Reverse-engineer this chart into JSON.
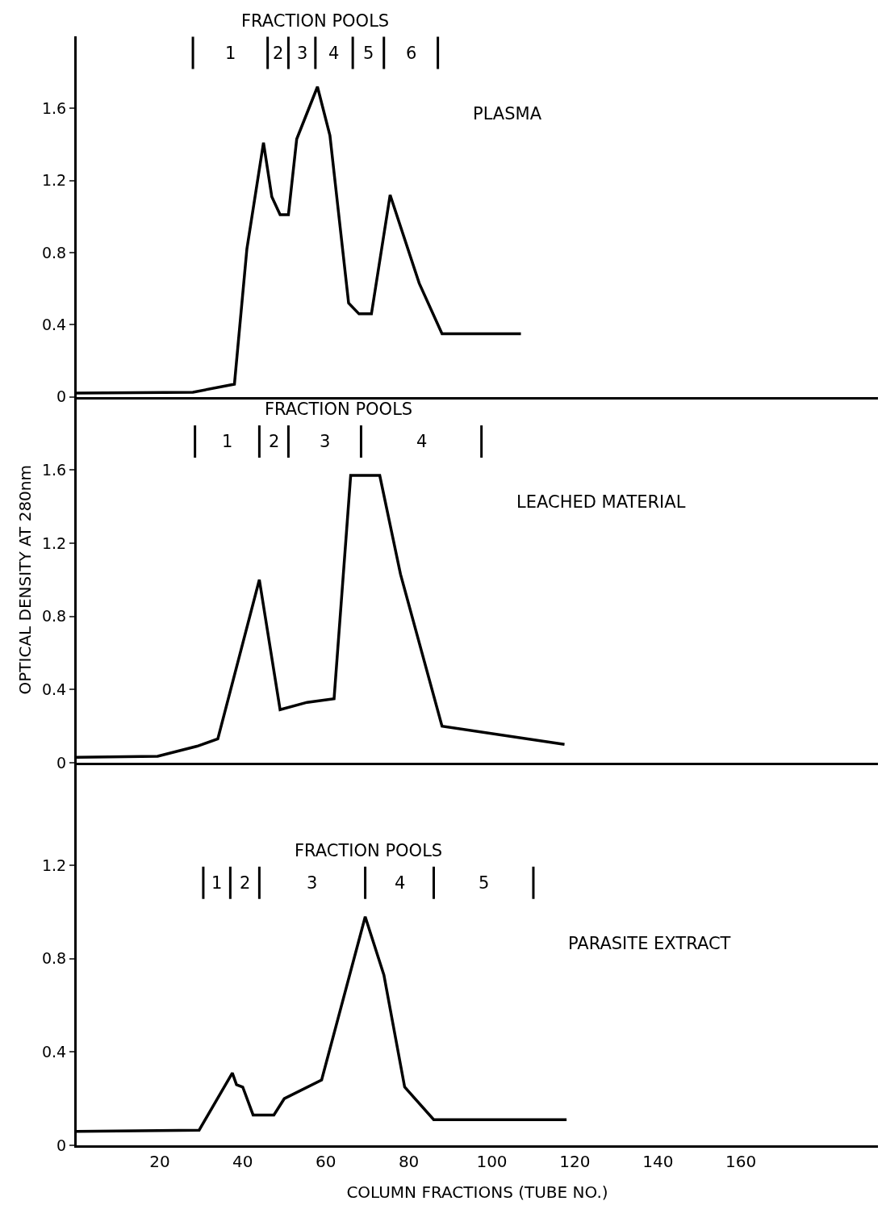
{
  "chart_data": [
    {
      "type": "line",
      "xlim": [
        0,
        193
      ],
      "ylim": [
        0,
        2.0
      ],
      "yticks": [
        0,
        0.4,
        0.8,
        1.2,
        1.6
      ],
      "xticks": [
        20,
        40,
        60,
        80,
        100,
        120,
        140,
        160
      ],
      "tick_labels": "y",
      "grid": false,
      "marker": "none",
      "line_style": "solid",
      "series": [
        {
          "color": "#000000",
          "x": [
            0,
            28,
            38,
            41,
            45,
            47,
            49,
            51,
            53,
            58,
            61,
            65.5,
            68,
            71,
            75.5,
            82.5,
            88,
            107
          ],
          "values": [
            0.02,
            0.025,
            0.07,
            0.82,
            1.41,
            1.11,
            1.01,
            1.01,
            1.43,
            1.72,
            1.45,
            0.52,
            0.46,
            0.46,
            1.12,
            0.63,
            0.35,
            0.35
          ]
        }
      ],
      "ref_lines": [
        {
          "axis": "x",
          "value": 28
        },
        {
          "axis": "x",
          "value": 46
        },
        {
          "axis": "x",
          "value": 51
        },
        {
          "axis": "x",
          "value": 57.5
        },
        {
          "axis": "x",
          "value": 66.5
        },
        {
          "axis": "x",
          "value": 74
        },
        {
          "axis": "x",
          "value": 87
        }
      ],
      "annotations": [
        "FRACTION POOLS",
        "PLASMA",
        "1",
        "2",
        "3",
        "4",
        "5",
        "6"
      ]
    },
    {
      "type": "line",
      "xlim": [
        0,
        193
      ],
      "ylim": [
        0,
        2.0
      ],
      "yticks": [
        0,
        0.4,
        0.8,
        1.2,
        1.6
      ],
      "xticks": [
        20,
        40,
        60,
        80,
        100,
        120,
        140,
        160
      ],
      "tick_labels": "y",
      "grid": false,
      "marker": "none",
      "line_style": "solid",
      "ylabel": "OPTICAL DENSITY AT 280nm",
      "series": [
        {
          "color": "#000000",
          "x": [
            0,
            19.5,
            29,
            34,
            44,
            49,
            55.5,
            62,
            66,
            73,
            78,
            88,
            117.5
          ],
          "values": [
            0.03,
            0.035,
            0.09,
            0.13,
            1.0,
            0.29,
            0.33,
            0.35,
            1.57,
            1.57,
            1.03,
            0.2,
            0.1
          ]
        }
      ],
      "ref_lines": [
        {
          "axis": "x",
          "value": 28.5
        },
        {
          "axis": "x",
          "value": 44
        },
        {
          "axis": "x",
          "value": 51
        },
        {
          "axis": "x",
          "value": 68.5
        },
        {
          "axis": "x",
          "value": 97.5
        }
      ],
      "annotations": [
        "FRACTION POOLS",
        "LEACHED MATERIAL",
        "1",
        "2",
        "3",
        "4"
      ]
    },
    {
      "type": "line",
      "xlim": [
        0,
        193
      ],
      "ylim": [
        0,
        1.64
      ],
      "yticks": [
        0,
        0.4,
        0.8,
        1.2
      ],
      "xticks": [
        20,
        40,
        60,
        80,
        100,
        120,
        140,
        160
      ],
      "grid": false,
      "marker": "none",
      "line_style": "solid",
      "xlabel": "COLUMN FRACTIONS (TUBE NO.)",
      "series": [
        {
          "color": "#000000",
          "x": [
            0,
            29.5,
            37.5,
            38.5,
            40,
            42.5,
            47.5,
            50,
            59,
            69.5,
            74,
            79,
            86,
            118
          ],
          "values": [
            0.06,
            0.065,
            0.31,
            0.26,
            0.25,
            0.13,
            0.13,
            0.2,
            0.28,
            0.98,
            0.73,
            0.25,
            0.11,
            0.11
          ]
        }
      ],
      "ref_lines": [
        {
          "axis": "x",
          "value": 30.5
        },
        {
          "axis": "x",
          "value": 37
        },
        {
          "axis": "x",
          "value": 44
        },
        {
          "axis": "x",
          "value": 69.5
        },
        {
          "axis": "x",
          "value": 86
        },
        {
          "axis": "x",
          "value": 110
        }
      ],
      "annotations": [
        "FRACTION POOLS",
        "PARASITE EXTRACT",
        "1",
        "2",
        "3",
        "4",
        "5"
      ]
    }
  ]
}
